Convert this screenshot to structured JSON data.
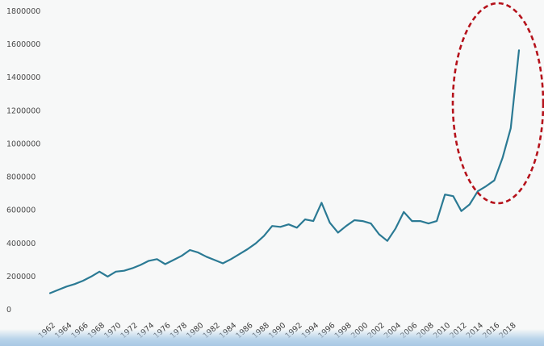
{
  "chart_data": {
    "type": "line",
    "title": "",
    "xlabel": "",
    "ylabel": "",
    "ylim": [
      0,
      1800000
    ],
    "yticks": [
      "0",
      "200000",
      "400000",
      "600000",
      "800000",
      "1000000",
      "1200000",
      "1400000",
      "1600000",
      "1800000"
    ],
    "xticks": [
      "1962",
      "1964",
      "1966",
      "1968",
      "1970",
      "1972",
      "1974",
      "1976",
      "1978",
      "1980",
      "1982",
      "1984",
      "1986",
      "1988",
      "1990",
      "1992",
      "1994",
      "1996",
      "1998",
      "2000",
      "2002",
      "2004",
      "2006",
      "2008",
      "2010",
      "2012",
      "2014",
      "2016",
      "2018"
    ],
    "grid": false,
    "legend": "none",
    "series": [
      {
        "color": "#2b7a94",
        "x": [
          1962,
          1963,
          1964,
          1965,
          1966,
          1967,
          1968,
          1969,
          1970,
          1971,
          1972,
          1973,
          1974,
          1975,
          1976,
          1977,
          1978,
          1979,
          1980,
          1981,
          1982,
          1983,
          1984,
          1985,
          1986,
          1987,
          1988,
          1989,
          1990,
          1991,
          1992,
          1993,
          1994,
          1995,
          1996,
          1997,
          1998,
          1999,
          2000,
          2001,
          2002,
          2003,
          2004,
          2005,
          2006,
          2007,
          2008,
          2009,
          2010,
          2011,
          2012,
          2013,
          2014,
          2015,
          2016,
          2017,
          2018,
          2019
        ],
        "values": [
          95000,
          115000,
          135000,
          150000,
          170000,
          195000,
          225000,
          195000,
          225000,
          230000,
          245000,
          265000,
          290000,
          300000,
          270000,
          295000,
          320000,
          355000,
          340000,
          315000,
          295000,
          275000,
          300000,
          330000,
          360000,
          395000,
          440000,
          500000,
          495000,
          510000,
          490000,
          540000,
          530000,
          640000,
          520000,
          460000,
          500000,
          535000,
          530000,
          515000,
          450000,
          410000,
          485000,
          585000,
          530000,
          530000,
          515000,
          530000,
          690000,
          680000,
          590000,
          630000,
          710000,
          740000,
          775000,
          910000,
          1090000,
          1560000
        ]
      }
    ],
    "annotations": [
      {
        "type": "ellipse",
        "color": "#b5121b",
        "style": "dashed"
      }
    ]
  }
}
